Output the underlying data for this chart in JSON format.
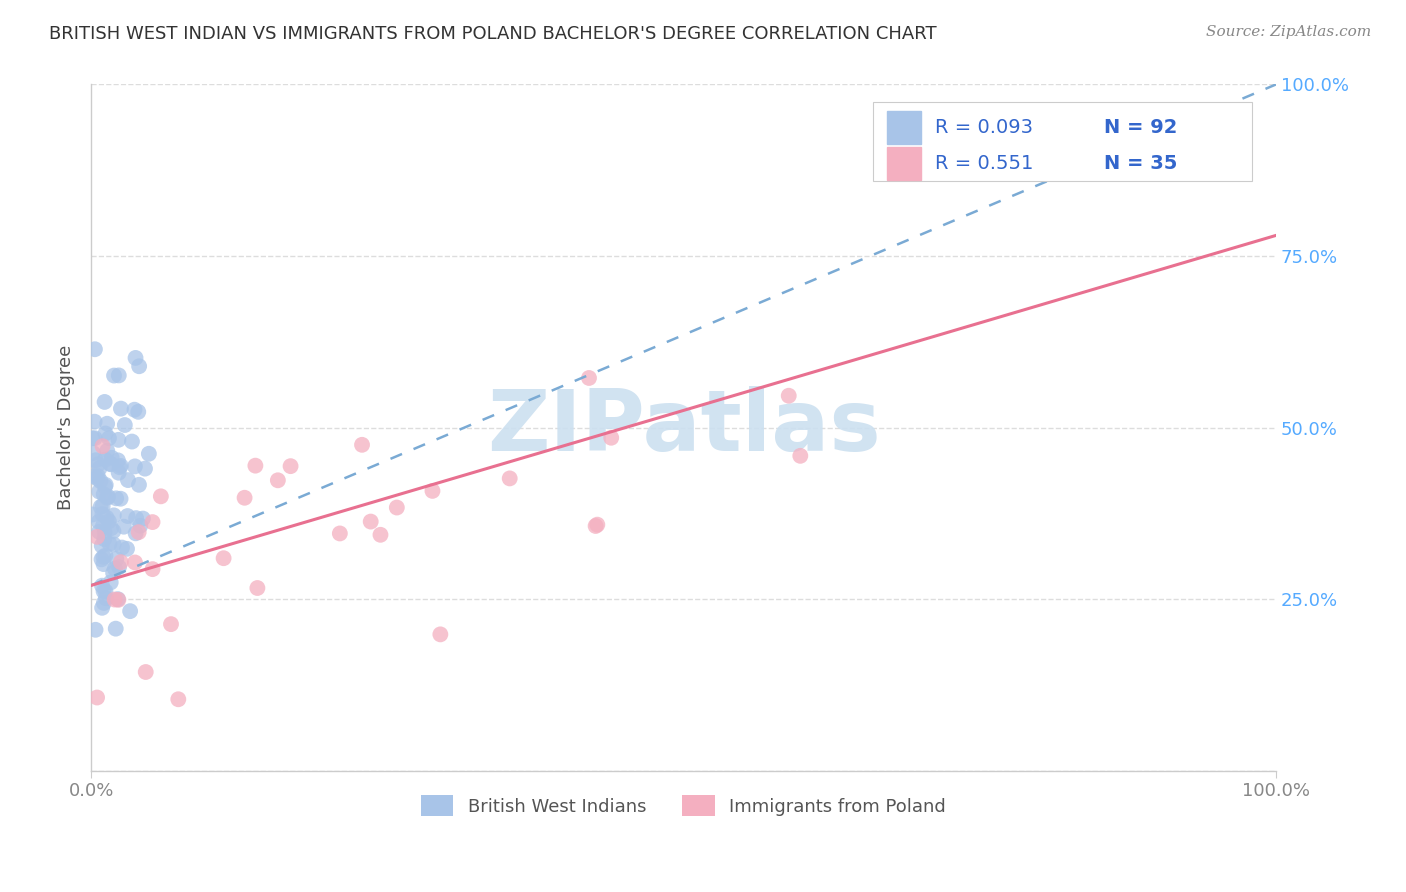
{
  "title": "BRITISH WEST INDIAN VS IMMIGRANTS FROM POLAND BACHELOR'S DEGREE CORRELATION CHART",
  "source_text": "Source: ZipAtlas.com",
  "ylabel": "Bachelor's Degree",
  "xlim": [
    0.0,
    1.0
  ],
  "ylim": [
    0.0,
    1.0
  ],
  "series1_label": "British West Indians",
  "series1_scatter_color": "#a8c4e8",
  "series1_line_color": "#7aaad4",
  "series1_R": 0.093,
  "series1_N": 92,
  "series2_label": "Immigrants from Poland",
  "series2_scatter_color": "#f4afc0",
  "series2_line_color": "#e87090",
  "series2_R": 0.551,
  "series2_N": 35,
  "watermark_text": "ZIPatlas",
  "watermark_color": "#cce0f0",
  "background_color": "#ffffff",
  "grid_color": "#dddddd",
  "title_color": "#333333",
  "source_color": "#888888",
  "legend_text_color": "#3366cc",
  "right_tick_color": "#55aaff",
  "legend_box_color": "#f0f4f8",
  "legend_border_color": "#cccccc",
  "axis_color": "#cccccc",
  "tick_label_color": "#888888",
  "ylabel_color": "#555555",
  "bottom_legend_color": "#555555"
}
